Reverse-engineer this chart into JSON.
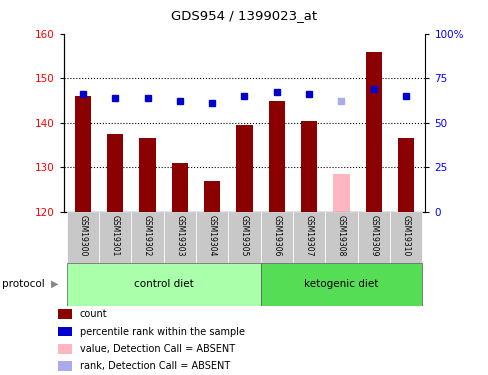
{
  "title": "GDS954 / 1399023_at",
  "samples": [
    "GSM19300",
    "GSM19301",
    "GSM19302",
    "GSM19303",
    "GSM19304",
    "GSM19305",
    "GSM19306",
    "GSM19307",
    "GSM19308",
    "GSM19309",
    "GSM19310"
  ],
  "bar_values": [
    146.0,
    137.5,
    136.5,
    131.0,
    127.0,
    139.5,
    145.0,
    140.5,
    128.5,
    156.0,
    136.5
  ],
  "bar_colors": [
    "#8B0000",
    "#8B0000",
    "#8B0000",
    "#8B0000",
    "#8B0000",
    "#8B0000",
    "#8B0000",
    "#8B0000",
    "#FFB6C1",
    "#8B0000",
    "#8B0000"
  ],
  "dot_values": [
    146.5,
    145.5,
    145.5,
    145.0,
    144.5,
    146.0,
    147.0,
    146.5,
    145.0,
    147.5,
    146.0
  ],
  "dot_colors": [
    "#0000CD",
    "#0000CD",
    "#0000CD",
    "#0000CD",
    "#0000CD",
    "#0000CD",
    "#0000CD",
    "#0000CD",
    "#AAAAEE",
    "#0000CD",
    "#0000CD"
  ],
  "ylim_left": [
    120,
    160
  ],
  "ylim_right": [
    0,
    100
  ],
  "yticks_left": [
    120,
    130,
    140,
    150,
    160
  ],
  "yticks_right": [
    0,
    25,
    50,
    75,
    100
  ],
  "ytick_labels_right": [
    "0",
    "25",
    "50",
    "75",
    "100%"
  ],
  "n_control": 6,
  "n_ketogenic": 5,
  "control_label": "control diet",
  "ketogenic_label": "ketogenic diet",
  "protocol_label": "protocol",
  "legend_items": [
    {
      "label": "count",
      "color": "#8B0000"
    },
    {
      "label": "percentile rank within the sample",
      "color": "#0000CD"
    },
    {
      "label": "value, Detection Call = ABSENT",
      "color": "#FFB6C1"
    },
    {
      "label": "rank, Detection Call = ABSENT",
      "color": "#AAAAEE"
    }
  ],
  "bar_width": 0.5,
  "label_area_color": "#C8C8C8",
  "group_color_control": "#AAFFAA",
  "group_color_ketogenic": "#55DD55"
}
